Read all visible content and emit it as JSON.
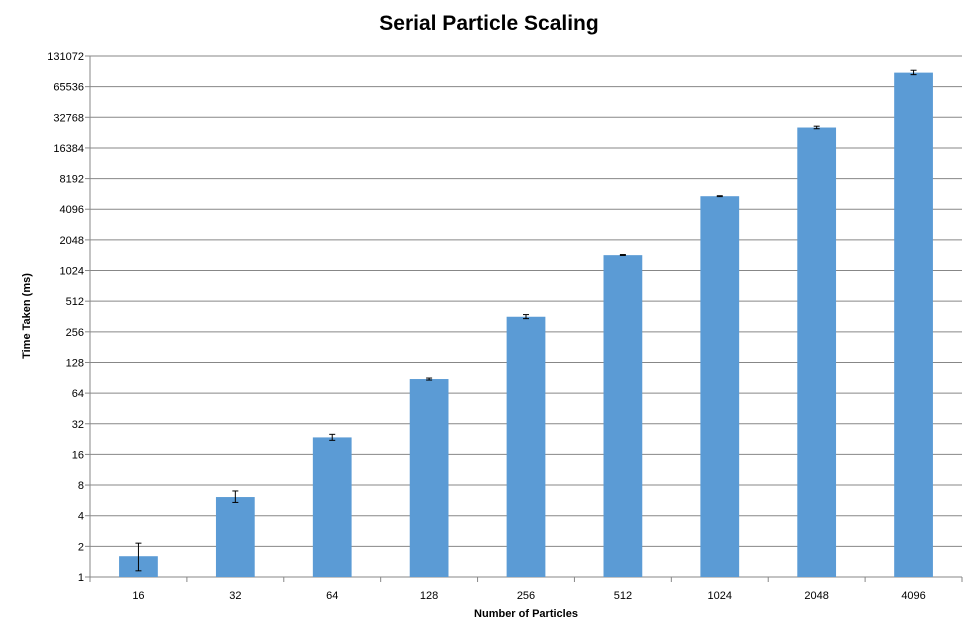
{
  "chart_data": {
    "type": "bar",
    "title": "Serial Particle Scaling",
    "xlabel": "Number of Particles",
    "ylabel": "Time Taken (ms)",
    "categories": [
      "16",
      "32",
      "64",
      "128",
      "256",
      "512",
      "1024",
      "2048",
      "4096"
    ],
    "values": [
      1.6,
      6.1,
      23.5,
      88,
      360,
      1450,
      5500,
      26000,
      90000
    ],
    "error_bars": [
      {
        "low": 1.15,
        "high": 2.15
      },
      {
        "low": 5.4,
        "high": 7.0
      },
      {
        "low": 22,
        "high": 25.2
      },
      {
        "low": 86,
        "high": 90
      },
      {
        "low": 345,
        "high": 378
      },
      {
        "low": 1440,
        "high": 1470
      },
      {
        "low": 5450,
        "high": 5560
      },
      {
        "low": 25300,
        "high": 26800
      },
      {
        "low": 86000,
        "high": 95000
      }
    ],
    "y_scale": "log2",
    "y_ticks": [
      "1",
      "2",
      "4",
      "8",
      "16",
      "32",
      "64",
      "128",
      "256",
      "512",
      "1024",
      "2048",
      "4096",
      "8192",
      "16384",
      "32768",
      "65536",
      "131072"
    ],
    "ylim": [
      1,
      131072
    ],
    "grid": true,
    "legend": "none",
    "colors": {
      "bar": "#5b9bd5",
      "grid": "#878787",
      "error_bar": "#000000"
    }
  }
}
